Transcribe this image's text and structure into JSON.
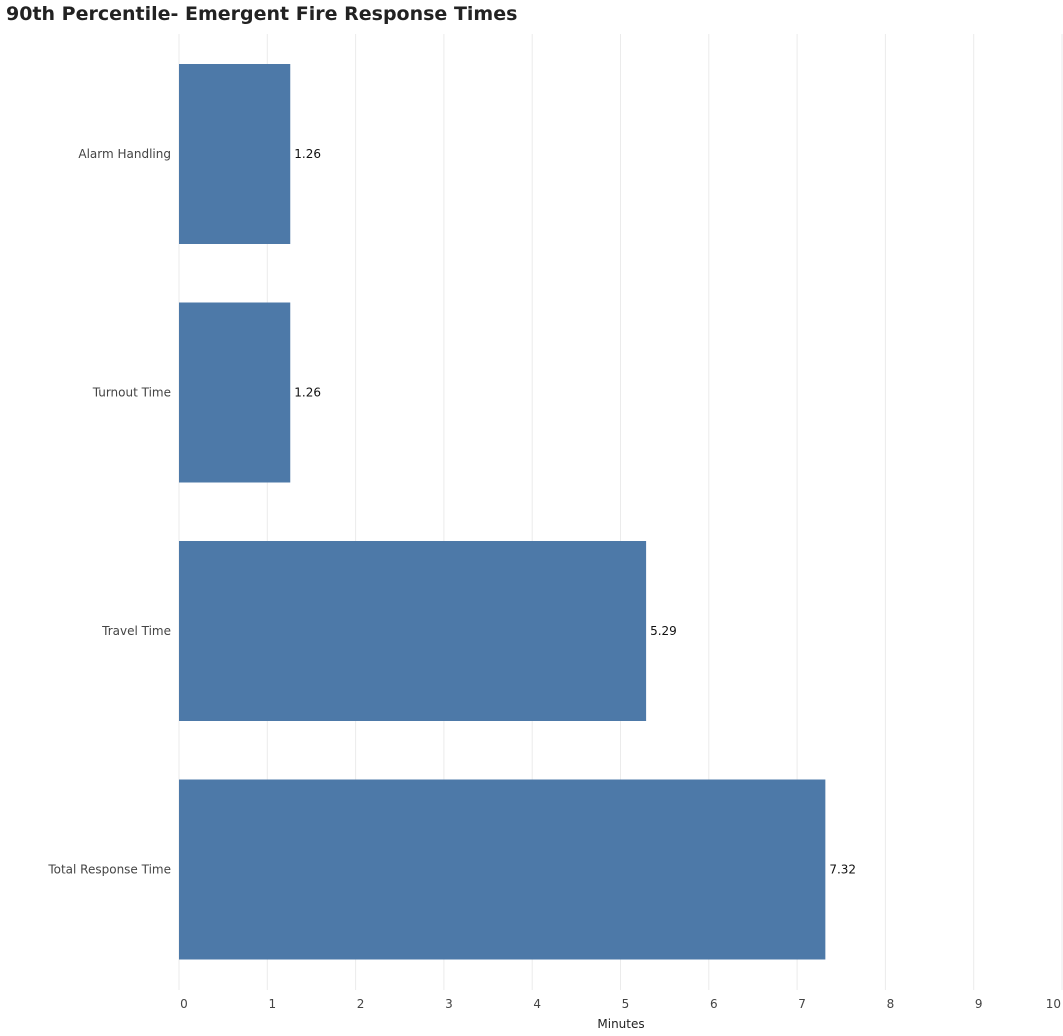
{
  "chart_data": {
    "type": "bar",
    "orientation": "horizontal",
    "title": "90th Percentile- Emergent Fire Response Times",
    "xlabel": "Minutes",
    "ylabel": "",
    "categories": [
      "Alarm Handling",
      "Turnout Time",
      "Travel Time",
      "Total Response Time"
    ],
    "values": [
      1.26,
      1.26,
      5.29,
      7.32
    ],
    "data_labels": [
      "1.26",
      "1.26",
      "5.29",
      "7.32"
    ],
    "xlim": [
      0,
      10
    ],
    "xticks": [
      "0",
      "1",
      "2",
      "3",
      "4",
      "5",
      "6",
      "7",
      "8",
      "9",
      "10"
    ],
    "grid": true,
    "bar_color": "#4d79a8"
  }
}
